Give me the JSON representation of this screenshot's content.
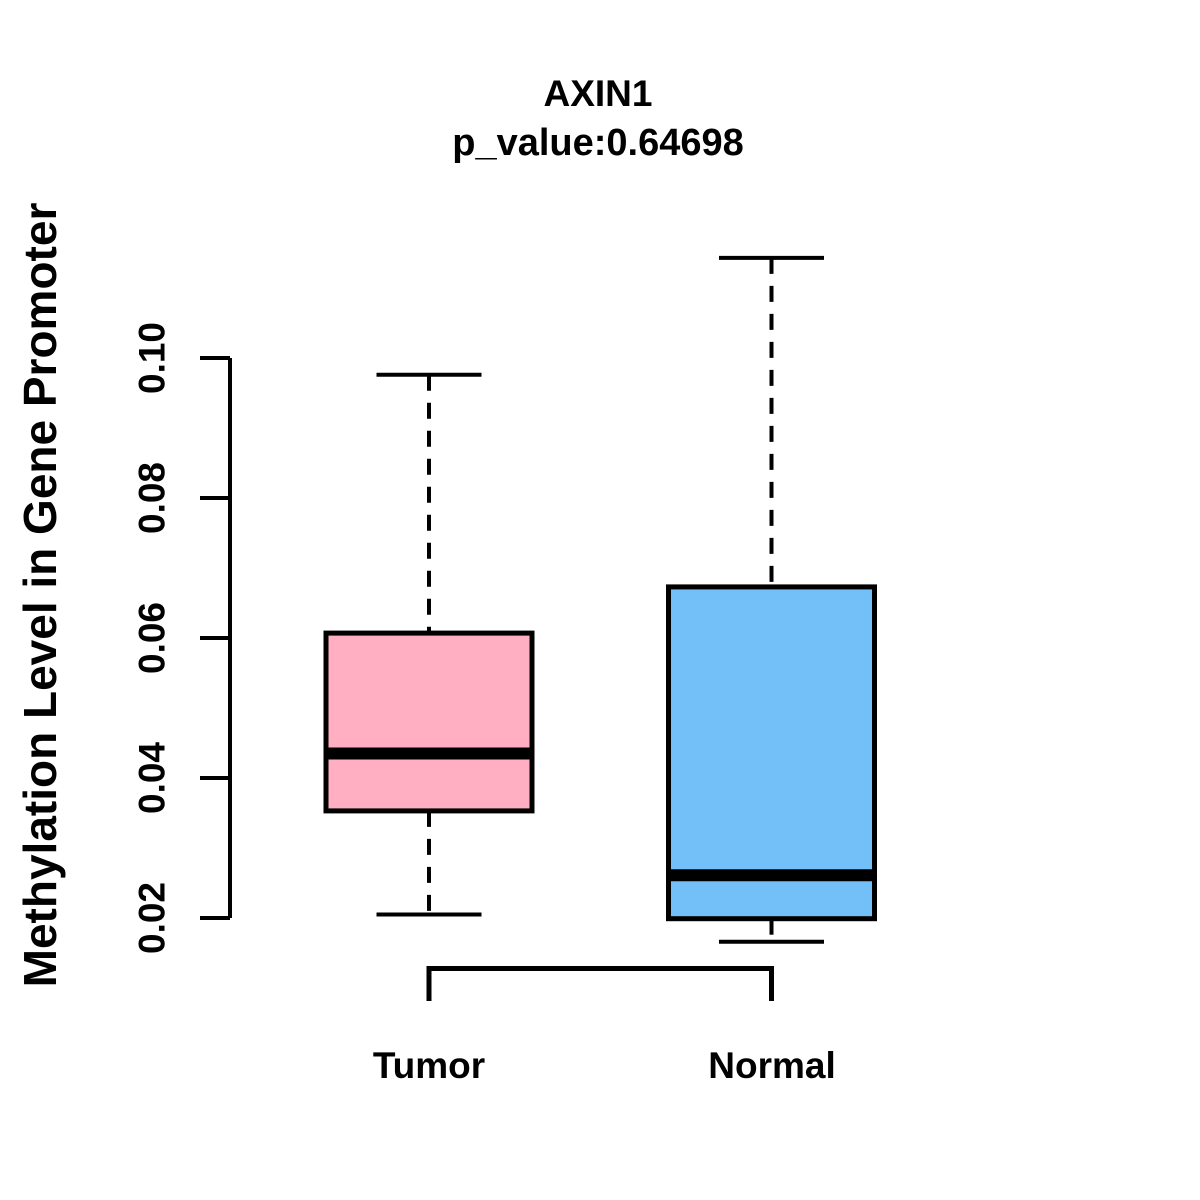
{
  "chart_data": {
    "type": "boxplot",
    "title": "AXIN1",
    "subtitle": "p_value:0.64698",
    "p_value": 0.64698,
    "ylabel": "Methylation Level in Gene Promoter",
    "xlabel": "",
    "categories": [
      "Tumor",
      "Normal"
    ],
    "axis": {
      "tick_values": [
        0.02,
        0.04,
        0.06,
        0.08,
        0.1
      ],
      "tick_labels": [
        "0.02",
        "0.04",
        "0.06",
        "0.08",
        "0.10"
      ],
      "ylim": [
        0.0166,
        0.1143
      ],
      "grid": false
    },
    "series": [
      {
        "name": "Tumor",
        "color": "#FFAFC1",
        "whisker_low": 0.0205,
        "q1": 0.0353,
        "median": 0.0435,
        "q3": 0.0607,
        "whisker_high": 0.0976
      },
      {
        "name": "Normal",
        "color": "#73BFF7",
        "whisker_low": 0.0166,
        "q1": 0.0199,
        "median": 0.0261,
        "q3": 0.0673,
        "whisker_high": 0.1143
      }
    ],
    "comparison_bracket": {
      "from": "Tumor",
      "to": "Normal"
    },
    "styles": {
      "box_border_color": "#000000",
      "whisker_style": "dashed",
      "background": "#ffffff"
    }
  }
}
